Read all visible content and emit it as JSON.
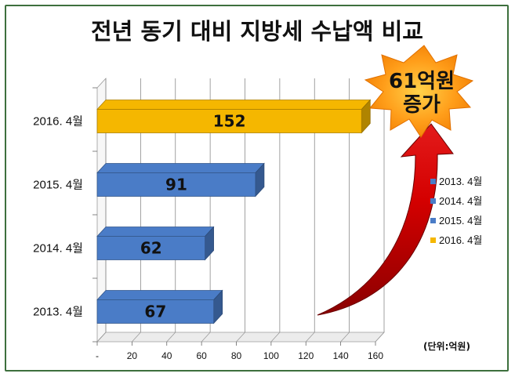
{
  "chart_data": {
    "type": "bar",
    "orientation": "horizontal",
    "title": "전년 동기 대비 지방세 수납액 비교",
    "categories": [
      "2013. 4월",
      "2014. 4월",
      "2015. 4월",
      "2016. 4월"
    ],
    "values": [
      67,
      62,
      91,
      152
    ],
    "colors": [
      "#4a7cc7",
      "#4a7cc7",
      "#4a7cc7",
      "#f5b700"
    ],
    "x_ticks": [
      "-",
      "20",
      "40",
      "60",
      "80",
      "100",
      "120",
      "140",
      "160"
    ],
    "xlim": [
      0,
      160
    ],
    "unit_label": "(단위:억원)",
    "legend": {
      "position": "right",
      "entries": [
        {
          "label": "2013. 4월",
          "color": "#4a7cc7"
        },
        {
          "label": "2014. 4월",
          "color": "#4a7cc7"
        },
        {
          "label": "2015. 4월",
          "color": "#4a7cc7"
        },
        {
          "label": "2016. 4월",
          "color": "#f5b700"
        }
      ]
    },
    "annotation": {
      "line1": "61억원",
      "line2": "증가"
    },
    "grid": true
  }
}
